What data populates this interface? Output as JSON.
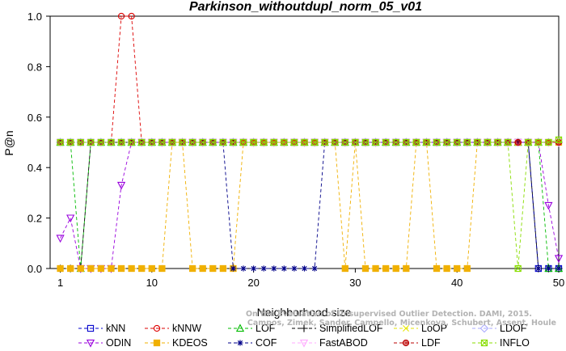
{
  "chart_data": {
    "type": "line",
    "title": "Parkinson_withoutdupl_norm_05_v01",
    "xlabel": "Neighborhood size",
    "ylabel": "P@n",
    "xlim": [
      0,
      50
    ],
    "ylim": [
      0,
      1.0
    ],
    "xticks": [
      1,
      10,
      20,
      30,
      40,
      50
    ],
    "yticks": [
      0.0,
      0.2,
      0.4,
      0.6,
      0.8,
      1.0
    ],
    "tick_labels": {
      "x": [
        "1",
        "10",
        "20",
        "30",
        "40",
        "50"
      ],
      "y": [
        "0.0",
        "0.2",
        "0.4",
        "0.6",
        "0.8",
        "1.0"
      ]
    },
    "grid": false,
    "legend_placement": "bottom",
    "x": [
      1,
      2,
      3,
      4,
      5,
      6,
      7,
      8,
      9,
      10,
      11,
      12,
      13,
      14,
      15,
      16,
      17,
      18,
      19,
      20,
      21,
      22,
      23,
      24,
      25,
      26,
      27,
      28,
      29,
      30,
      31,
      32,
      33,
      34,
      35,
      36,
      37,
      38,
      39,
      40,
      41,
      42,
      43,
      44,
      45,
      46,
      47,
      48,
      49,
      50
    ],
    "series": [
      {
        "name": "kNN",
        "color": "#0000cc",
        "marker": "square",
        "values": [
          0.5,
          0.5,
          0.5,
          0.5,
          0.5,
          0.5,
          0.5,
          0.5,
          0.5,
          0.5,
          0.5,
          0.5,
          0.5,
          0.5,
          0.5,
          0.5,
          0.5,
          0.5,
          0.5,
          0.5,
          0.5,
          0.5,
          0.5,
          0.5,
          0.5,
          0.5,
          0.5,
          0.5,
          0.5,
          0.5,
          0.5,
          0.5,
          0.5,
          0.5,
          0.5,
          0.5,
          0.5,
          0.5,
          0.5,
          0.5,
          0.5,
          0.5,
          0.5,
          0.5,
          0.5,
          0.5,
          0.5,
          0.0,
          0.0,
          0.0
        ]
      },
      {
        "name": "kNNW",
        "color": "#dd0000",
        "marker": "circle",
        "values": [
          0.5,
          0.5,
          0.5,
          0.5,
          0.5,
          0.5,
          1.0,
          1.0,
          0.5,
          0.5,
          0.5,
          0.5,
          0.5,
          0.5,
          0.5,
          0.5,
          0.5,
          0.5,
          0.5,
          0.5,
          0.5,
          0.5,
          0.5,
          0.5,
          0.5,
          0.5,
          0.5,
          0.5,
          0.5,
          0.5,
          0.5,
          0.5,
          0.5,
          0.5,
          0.5,
          0.5,
          0.5,
          0.5,
          0.5,
          0.5,
          0.5,
          0.5,
          0.5,
          0.5,
          0.5,
          0.5,
          0.5,
          0.5,
          0.5,
          0.5
        ]
      },
      {
        "name": "LOF",
        "color": "#00bb00",
        "marker": "triangle-up",
        "values": [
          0.5,
          0.5,
          0.0,
          0.5,
          0.5,
          0.5,
          0.5,
          0.5,
          0.5,
          0.5,
          0.5,
          0.5,
          0.5,
          0.5,
          0.5,
          0.5,
          0.5,
          0.5,
          0.5,
          0.5,
          0.5,
          0.5,
          0.5,
          0.5,
          0.5,
          0.5,
          0.5,
          0.5,
          0.5,
          0.5,
          0.5,
          0.5,
          0.5,
          0.5,
          0.5,
          0.5,
          0.5,
          0.5,
          0.5,
          0.5,
          0.5,
          0.5,
          0.5,
          0.5,
          0.5,
          0.5,
          0.5,
          0.5,
          0.0,
          0.0
        ]
      },
      {
        "name": "SimplifiedLOF",
        "color": "#000000",
        "marker": "plus",
        "values": [
          0.0,
          0.0,
          0.0,
          0.5,
          0.5,
          0.5,
          0.5,
          0.5,
          0.5,
          0.5,
          0.5,
          0.5,
          0.5,
          0.5,
          0.5,
          0.5,
          0.5,
          0.5,
          0.5,
          0.5,
          0.5,
          0.5,
          0.5,
          0.5,
          0.5,
          0.5,
          0.5,
          0.5,
          0.5,
          0.5,
          0.5,
          0.5,
          0.5,
          0.5,
          0.5,
          0.5,
          0.5,
          0.5,
          0.5,
          0.5,
          0.5,
          0.5,
          0.5,
          0.5,
          0.5,
          0.5,
          0.5,
          0.0,
          0.0,
          0.0
        ]
      },
      {
        "name": "LoOP",
        "color": "#e6e600",
        "marker": "cross",
        "values": [
          0.5,
          0.5,
          0.5,
          0.5,
          0.5,
          0.5,
          0.5,
          0.5,
          0.5,
          0.5,
          0.5,
          0.5,
          0.5,
          0.5,
          0.5,
          0.5,
          0.5,
          0.5,
          0.5,
          0.5,
          0.5,
          0.5,
          0.5,
          0.5,
          0.5,
          0.5,
          0.5,
          0.5,
          0.5,
          0.5,
          0.5,
          0.5,
          0.5,
          0.5,
          0.5,
          0.5,
          0.5,
          0.5,
          0.5,
          0.5,
          0.5,
          0.5,
          0.5,
          0.5,
          0.5,
          0.5,
          0.5,
          0.5,
          0.5,
          0.5
        ]
      },
      {
        "name": "LDOF",
        "color": "#aaaaff",
        "marker": "diamond",
        "values": [
          0.5,
          0.5,
          0.5,
          0.5,
          0.5,
          0.5,
          0.5,
          0.5,
          0.5,
          0.5,
          0.5,
          0.5,
          0.5,
          0.5,
          0.5,
          0.5,
          0.5,
          0.5,
          0.5,
          0.5,
          0.5,
          0.5,
          0.5,
          0.5,
          0.5,
          0.5,
          0.5,
          0.5,
          0.5,
          0.5,
          0.5,
          0.5,
          0.5,
          0.5,
          0.5,
          0.5,
          0.5,
          0.5,
          0.5,
          0.5,
          0.5,
          0.5,
          0.5,
          0.5,
          0.5,
          0.5,
          0.5,
          0.5,
          0.5,
          0.5
        ]
      },
      {
        "name": "ODIN",
        "color": "#9900dd",
        "marker": "triangle-down",
        "values": [
          0.12,
          0.2,
          0.0,
          0.0,
          0.0,
          0.0,
          0.33,
          0.5,
          0.5,
          0.5,
          0.5,
          0.5,
          0.5,
          0.5,
          0.5,
          0.5,
          0.5,
          0.5,
          0.5,
          0.5,
          0.5,
          0.5,
          0.5,
          0.5,
          0.5,
          0.5,
          0.5,
          0.5,
          0.5,
          0.5,
          0.5,
          0.5,
          0.5,
          0.5,
          0.5,
          0.5,
          0.5,
          0.5,
          0.5,
          0.5,
          0.5,
          0.5,
          0.5,
          0.5,
          0.5,
          0.5,
          0.5,
          0.5,
          0.25,
          0.04
        ]
      },
      {
        "name": "KDEOS",
        "color": "#f0b000",
        "marker": "square-filled",
        "values": [
          0.0,
          0.0,
          0.0,
          0.0,
          0.0,
          0.0,
          0.0,
          0.0,
          0.0,
          0.0,
          0.0,
          0.5,
          0.5,
          0.0,
          0.0,
          0.0,
          0.0,
          0.0,
          0.5,
          0.5,
          0.5,
          0.5,
          0.5,
          0.5,
          0.5,
          0.5,
          0.5,
          0.5,
          0.0,
          0.5,
          0.0,
          0.0,
          0.0,
          0.0,
          0.0,
          0.5,
          0.5,
          0.0,
          0.0,
          0.0,
          0.0,
          0.5,
          0.5,
          0.5,
          0.5,
          0.5,
          0.5,
          0.5,
          0.5,
          0.5
        ]
      },
      {
        "name": "COF",
        "color": "#000088",
        "marker": "star",
        "values": [
          0.5,
          0.5,
          0.5,
          0.5,
          0.5,
          0.5,
          0.5,
          0.5,
          0.5,
          0.5,
          0.5,
          0.5,
          0.5,
          0.5,
          0.5,
          0.5,
          0.5,
          0.0,
          0.0,
          0.0,
          0.0,
          0.0,
          0.0,
          0.0,
          0.0,
          0.0,
          0.5,
          0.5,
          0.5,
          0.5,
          0.5,
          0.5,
          0.5,
          0.5,
          0.5,
          0.5,
          0.5,
          0.5,
          0.5,
          0.5,
          0.5,
          0.5,
          0.5,
          0.5,
          0.5,
          0.5,
          0.5,
          0.0,
          0.0,
          0.0
        ]
      },
      {
        "name": "FastABOD",
        "color": "#ffaaff",
        "marker": "triangle-down",
        "values": [
          0.5,
          0.5,
          0.5,
          0.5,
          0.5,
          0.5,
          0.5,
          0.5,
          0.5,
          0.5,
          0.5,
          0.5,
          0.5,
          0.5,
          0.5,
          0.5,
          0.5,
          0.5,
          0.5,
          0.5,
          0.5,
          0.5,
          0.5,
          0.5,
          0.5,
          0.5,
          0.5,
          0.5,
          0.5,
          0.5,
          0.5,
          0.5,
          0.5,
          0.5,
          0.5,
          0.5,
          0.5,
          0.5,
          0.5,
          0.5,
          0.5,
          0.5,
          0.5,
          0.5,
          0.5,
          0.5,
          0.5,
          0.5,
          0.5,
          0.5
        ]
      },
      {
        "name": "LDF",
        "color": "#bb0000",
        "marker": "circle-filled",
        "values": [
          0.5,
          0.5,
          0.5,
          0.5,
          0.5,
          0.5,
          0.5,
          0.5,
          0.5,
          0.5,
          0.5,
          0.5,
          0.5,
          0.5,
          0.5,
          0.5,
          0.5,
          0.5,
          0.5,
          0.5,
          0.5,
          0.5,
          0.5,
          0.5,
          0.5,
          0.5,
          0.5,
          0.5,
          0.5,
          0.5,
          0.5,
          0.5,
          0.5,
          0.5,
          0.5,
          0.5,
          0.5,
          0.5,
          0.5,
          0.5,
          0.5,
          0.5,
          0.5,
          0.5,
          0.5,
          0.5,
          0.5,
          0.5,
          0.5,
          0.5
        ]
      },
      {
        "name": "INFLO",
        "color": "#88dd00",
        "marker": "square-x",
        "values": [
          0.5,
          0.5,
          0.5,
          0.5,
          0.5,
          0.5,
          0.5,
          0.5,
          0.5,
          0.5,
          0.5,
          0.5,
          0.5,
          0.5,
          0.5,
          0.5,
          0.5,
          0.5,
          0.5,
          0.5,
          0.5,
          0.5,
          0.5,
          0.5,
          0.5,
          0.5,
          0.5,
          0.5,
          0.5,
          0.5,
          0.5,
          0.5,
          0.5,
          0.5,
          0.5,
          0.5,
          0.5,
          0.5,
          0.5,
          0.5,
          0.5,
          0.5,
          0.5,
          0.5,
          0.5,
          0.0,
          0.5,
          0.5,
          0.5,
          0.51
        ]
      }
    ],
    "legend_order": [
      "kNN",
      "kNNW",
      "LOF",
      "SimplifiedLOF",
      "LoOP",
      "LDOF",
      "ODIN",
      "KDEOS",
      "COF",
      "FastABOD",
      "LDF",
      "INFLO"
    ],
    "annotation": "Campos, Zimek, Sander, Campello, Micenkova, Schubert, Assent, Houle",
    "annotation_title": "On the Evaluation of Unsupervised Outlier Detection. DAMI, 2015."
  }
}
